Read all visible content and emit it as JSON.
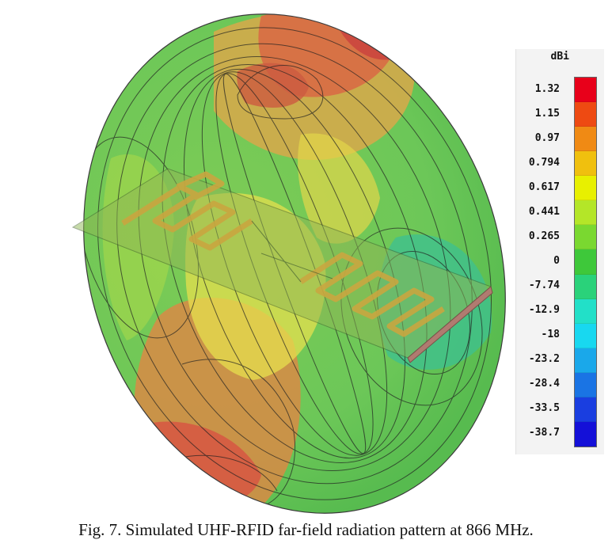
{
  "figure": {
    "caption": "Fig. 7.   Simulated UHF-RFID far-field radiation pattern at 866 MHz."
  },
  "legend": {
    "unit": "dBi",
    "ticks": [
      "1.32",
      "1.15",
      "0.97",
      "0.794",
      "0.617",
      "0.441",
      "0.265",
      "0",
      "-7.74",
      "-12.9",
      "-18",
      "-23.2",
      "-28.4",
      "-33.5",
      "-38.7"
    ],
    "colors": [
      "#e8001a",
      "#ee4a12",
      "#f08a14",
      "#f0c00e",
      "#e8f000",
      "#b4e628",
      "#7ad830",
      "#3ec83a",
      "#2ad27a",
      "#22e0c8",
      "#18d8f0",
      "#1aa8ea",
      "#1a74e4",
      "#1a3ee0",
      "#1410d8"
    ]
  },
  "pattern": {
    "colors": {
      "red": "#d2553f",
      "orange": "#e58c3f",
      "yellow": "#e6de4c",
      "green": "#5fc85a",
      "teal": "#3cc092",
      "antenna_trace": "#c9a640",
      "antenna_board": "#77b84e"
    }
  }
}
